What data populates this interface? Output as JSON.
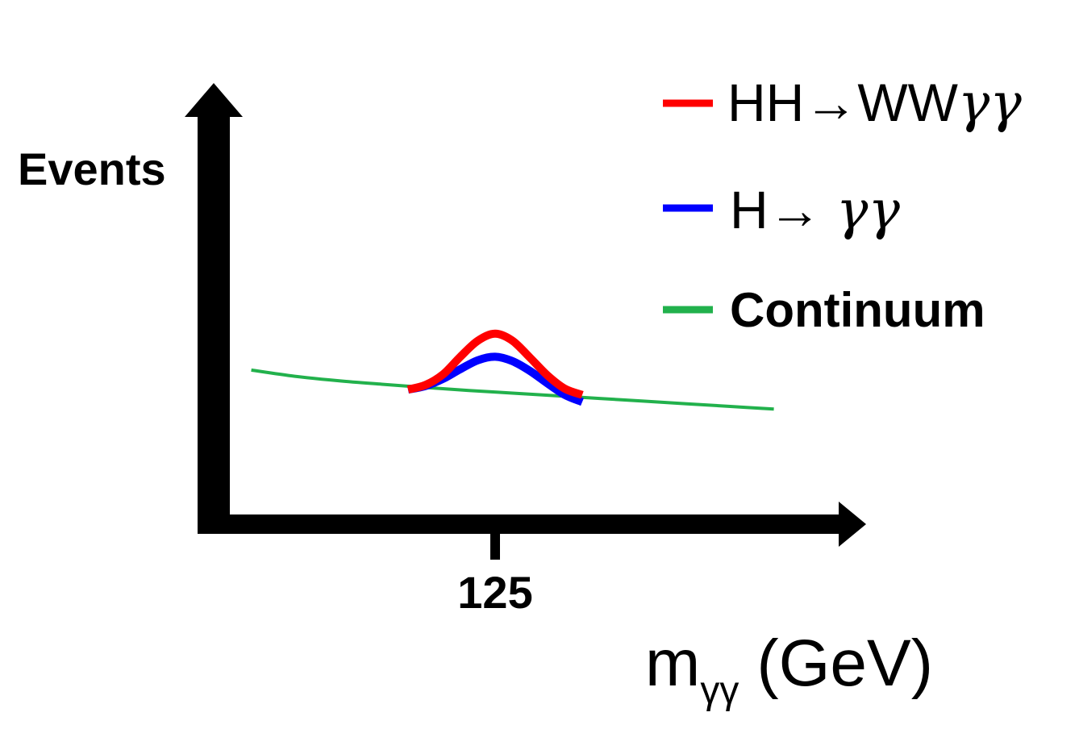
{
  "chart_data": {
    "type": "line",
    "ylabel": "Events",
    "xlabel": {
      "main": "m",
      "subscript": "γγ",
      "unit": "(GeV)"
    },
    "x_ticks": [
      125
    ],
    "x_tick_labels": [
      "125"
    ],
    "grid": false,
    "legend_position": "top-right",
    "series": [
      {
        "name": "HH→WWγγ",
        "name_parts": [
          "HH→WW",
          "γγ"
        ],
        "color": "#ff0000",
        "x": [
          115.0,
          117.0,
          119.0,
          121.0,
          123.0,
          125.0,
          127.0,
          129.0,
          131.0,
          133.0,
          135.0
        ],
        "y": [
          1.2,
          1.46,
          2.05,
          3.05,
          3.95,
          4.35,
          3.95,
          3.0,
          2.0,
          1.25,
          0.9
        ]
      },
      {
        "name": "H→ γγ",
        "name_parts": [
          "H→ ",
          "γγ"
        ],
        "color": "#0000ff",
        "x": [
          115.0,
          117.0,
          119.0,
          121.0,
          123.0,
          125.0,
          127.0,
          129.0,
          131.0,
          133.0,
          135.0
        ],
        "y": [
          1.2,
          1.4,
          1.8,
          2.35,
          2.85,
          3.05,
          2.8,
          2.25,
          1.55,
          0.9,
          0.5
        ]
      },
      {
        "name": "Continuum",
        "color": "#22b14c",
        "x": [
          97,
          102,
          107,
          112,
          117,
          122,
          127,
          132,
          137,
          142,
          147,
          152,
          157
        ],
        "y": [
          2.3,
          1.95,
          1.7,
          1.5,
          1.32,
          1.15,
          1.0,
          0.85,
          0.7,
          0.55,
          0.4,
          0.25,
          0.1
        ]
      }
    ]
  }
}
